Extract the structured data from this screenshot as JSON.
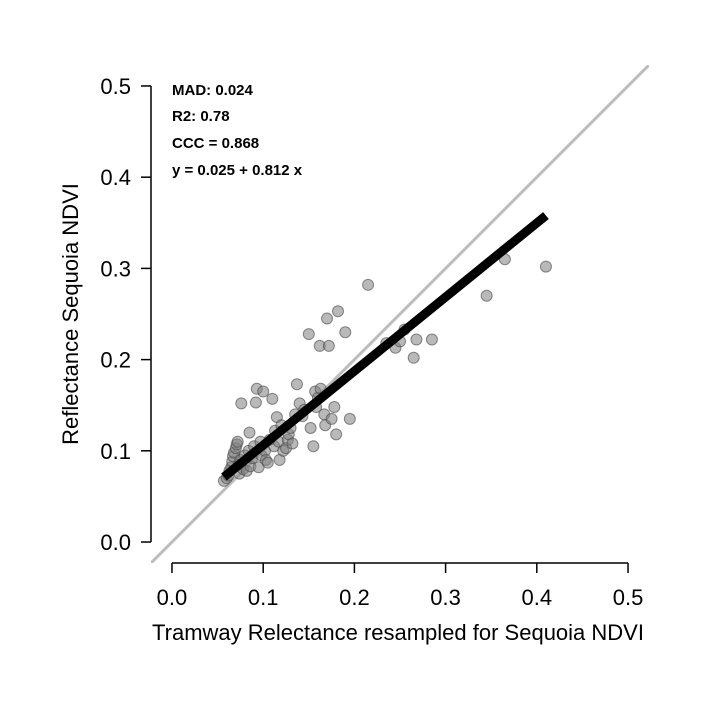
{
  "chart_data": {
    "type": "scatter",
    "xlabel": "Tramway Relectance resampled for Sequoia NDVI",
    "ylabel": "Reflectance Sequoia NDVI",
    "xlim": [
      -0.023,
      0.523
    ],
    "ylim": [
      -0.023,
      0.523
    ],
    "xticks": [
      "0.0",
      "0.1",
      "0.2",
      "0.3",
      "0.4",
      "0.5"
    ],
    "yticks": [
      "0.0",
      "0.1",
      "0.2",
      "0.3",
      "0.4",
      "0.5"
    ],
    "grid": false,
    "point_color": "#808080",
    "identity_line_color": "#bdbdbd",
    "fit_line_color": "#000000",
    "annotations": {
      "mad": "MAD: 0.024",
      "r2": "R2: 0.78",
      "ccc": "CCC =  0.868",
      "equation": "y =  0.025 + 0.812 x"
    },
    "fit_line": {
      "intercept": 0.025,
      "slope": 0.812,
      "x_range": [
        0.057,
        0.41
      ]
    },
    "identity_line": {
      "slope": 1,
      "intercept": 0
    },
    "points": [
      [
        0.057,
        0.067
      ],
      [
        0.06,
        0.07
      ],
      [
        0.062,
        0.073
      ],
      [
        0.063,
        0.078
      ],
      [
        0.065,
        0.082
      ],
      [
        0.066,
        0.088
      ],
      [
        0.067,
        0.094
      ],
      [
        0.068,
        0.098
      ],
      [
        0.07,
        0.103
      ],
      [
        0.071,
        0.107
      ],
      [
        0.072,
        0.11
      ],
      [
        0.073,
        0.085
      ],
      [
        0.074,
        0.075
      ],
      [
        0.075,
        0.09
      ],
      [
        0.076,
        0.152
      ],
      [
        0.078,
        0.08
      ],
      [
        0.08,
        0.095
      ],
      [
        0.082,
        0.078
      ],
      [
        0.084,
        0.1
      ],
      [
        0.085,
        0.12
      ],
      [
        0.086,
        0.083
      ],
      [
        0.088,
        0.092
      ],
      [
        0.09,
        0.105
      ],
      [
        0.092,
        0.153
      ],
      [
        0.093,
        0.168
      ],
      [
        0.095,
        0.082
      ],
      [
        0.097,
        0.11
      ],
      [
        0.098,
        0.095
      ],
      [
        0.1,
        0.165
      ],
      [
        0.102,
        0.1
      ],
      [
        0.103,
        0.09
      ],
      [
        0.105,
        0.087
      ],
      [
        0.107,
        0.112
      ],
      [
        0.11,
        0.157
      ],
      [
        0.112,
        0.105
      ],
      [
        0.113,
        0.122
      ],
      [
        0.115,
        0.137
      ],
      [
        0.117,
        0.11
      ],
      [
        0.118,
        0.09
      ],
      [
        0.12,
        0.128
      ],
      [
        0.122,
        0.1
      ],
      [
        0.125,
        0.103
      ],
      [
        0.127,
        0.112
      ],
      [
        0.128,
        0.118
      ],
      [
        0.13,
        0.125
      ],
      [
        0.132,
        0.108
      ],
      [
        0.135,
        0.14
      ],
      [
        0.137,
        0.173
      ],
      [
        0.14,
        0.152
      ],
      [
        0.143,
        0.138
      ],
      [
        0.145,
        0.145
      ],
      [
        0.15,
        0.228
      ],
      [
        0.152,
        0.125
      ],
      [
        0.155,
        0.105
      ],
      [
        0.157,
        0.165
      ],
      [
        0.158,
        0.148
      ],
      [
        0.16,
        0.158
      ],
      [
        0.162,
        0.215
      ],
      [
        0.163,
        0.168
      ],
      [
        0.167,
        0.14
      ],
      [
        0.168,
        0.128
      ],
      [
        0.17,
        0.245
      ],
      [
        0.172,
        0.215
      ],
      [
        0.175,
        0.135
      ],
      [
        0.178,
        0.148
      ],
      [
        0.18,
        0.118
      ],
      [
        0.182,
        0.253
      ],
      [
        0.19,
        0.23
      ],
      [
        0.195,
        0.135
      ],
      [
        0.215,
        0.282
      ],
      [
        0.235,
        0.218
      ],
      [
        0.245,
        0.213
      ],
      [
        0.25,
        0.22
      ],
      [
        0.255,
        0.233
      ],
      [
        0.265,
        0.202
      ],
      [
        0.268,
        0.222
      ],
      [
        0.285,
        0.222
      ],
      [
        0.345,
        0.27
      ],
      [
        0.365,
        0.31
      ],
      [
        0.41,
        0.302
      ]
    ]
  }
}
